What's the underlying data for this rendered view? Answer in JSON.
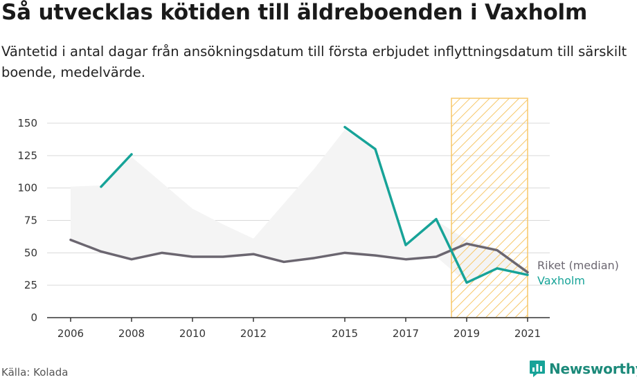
{
  "title": "Så utvecklas kötiden till äldreboenden i Vaxholm",
  "subtitle": "Väntetid i antal dagar från ansökningsdatum till första erbjudet inflyttningsdatum till särskilt boende, medelvärde.",
  "source": "Källa: Kolada",
  "brand": "Newsworthy",
  "colors": {
    "riket": "#6b6670",
    "vaxholm": "#17a398",
    "band": "#f4f4f4",
    "highlight": "#f7c768",
    "grid": "#d9d9d9"
  },
  "chart_data": {
    "type": "line",
    "x_ticks": [
      2006,
      2008,
      2010,
      2012,
      2015,
      2017,
      2019,
      2021
    ],
    "y_ticks": [
      0,
      25,
      50,
      75,
      100,
      125,
      150
    ],
    "xlim": [
      2006,
      2021
    ],
    "ylim": [
      0,
      150
    ],
    "grid": true,
    "highlight_range": [
      2018.5,
      2021
    ],
    "band": {
      "x": [
        2006,
        2007,
        2008,
        2009,
        2010,
        2011,
        2012,
        2013,
        2014,
        2015,
        2016,
        2017,
        2018,
        2019,
        2020,
        2021
      ],
      "upper": [
        101,
        102,
        124,
        104,
        84,
        72,
        61,
        88,
        115,
        145,
        130,
        55,
        75,
        60,
        53,
        37
      ],
      "lower": [
        60,
        51,
        45,
        50,
        47,
        47,
        49,
        43,
        46,
        50,
        48,
        45,
        47,
        27,
        38,
        33
      ]
    },
    "series": [
      {
        "name": "Riket (median)",
        "x": [
          2006,
          2007,
          2008,
          2009,
          2010,
          2011,
          2012,
          2013,
          2014,
          2015,
          2016,
          2017,
          2018,
          2019,
          2020,
          2021
        ],
        "values": [
          60,
          51,
          45,
          50,
          47,
          47,
          49,
          43,
          46,
          50,
          48,
          45,
          47,
          57,
          52,
          35
        ]
      },
      {
        "name": "Vaxholm",
        "x": [
          2007,
          2008,
          2009,
          2010,
          2011,
          2012,
          2013,
          2014,
          2015,
          2016,
          2017,
          2018,
          2019,
          2020,
          2021
        ],
        "values": [
          101,
          126,
          null,
          null,
          null,
          null,
          null,
          null,
          147,
          130,
          56,
          76,
          27,
          38,
          33
        ]
      }
    ]
  }
}
